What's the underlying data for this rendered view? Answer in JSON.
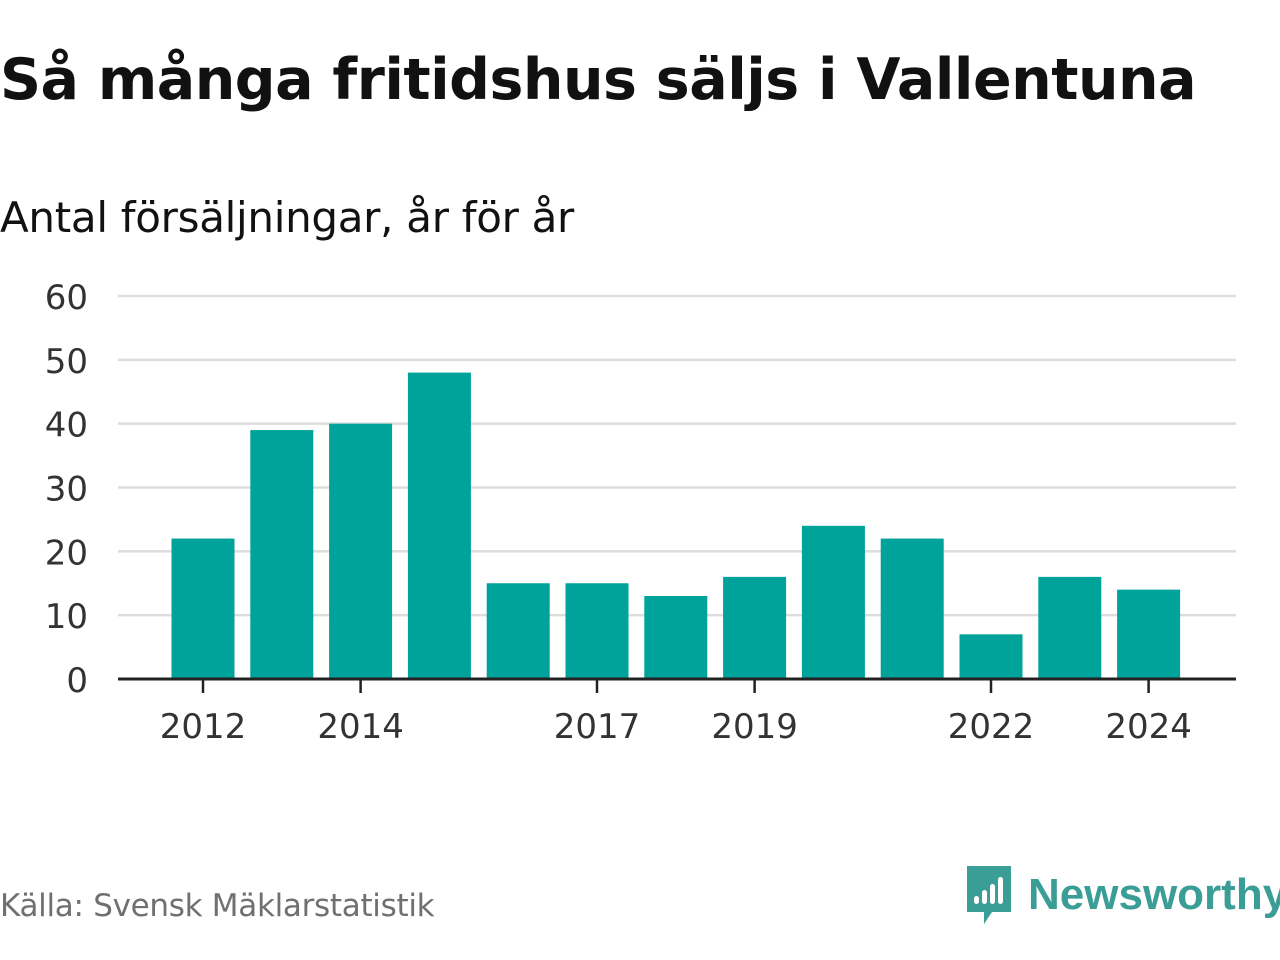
{
  "title": "Så många fritidshus säljs i Vallentuna",
  "subtitle": "Antal försäljningar, år för år",
  "source": "Källa: Svensk Mäklarstatistik",
  "brand": {
    "name": "Newsworthy",
    "icon": "newsworthy-logo-icon",
    "color": "#3a9e96"
  },
  "chart_data": {
    "type": "bar",
    "categories": [
      2012,
      2013,
      2014,
      2015,
      2016,
      2017,
      2018,
      2019,
      2020,
      2021,
      2022,
      2023,
      2024
    ],
    "values": [
      22,
      39,
      40,
      48,
      15,
      15,
      13,
      16,
      24,
      22,
      7,
      16,
      14
    ],
    "x_tick_labels": [
      "2012",
      "2014",
      "2017",
      "2019",
      "2022",
      "2024"
    ],
    "y_ticks": [
      0,
      10,
      20,
      30,
      40,
      50,
      60
    ],
    "ylim": [
      0,
      60
    ],
    "grid": true,
    "bar_color": "#00a39a",
    "grid_color": "#dddddd",
    "axis_color": "#222222",
    "xlabel": "",
    "ylabel": ""
  }
}
